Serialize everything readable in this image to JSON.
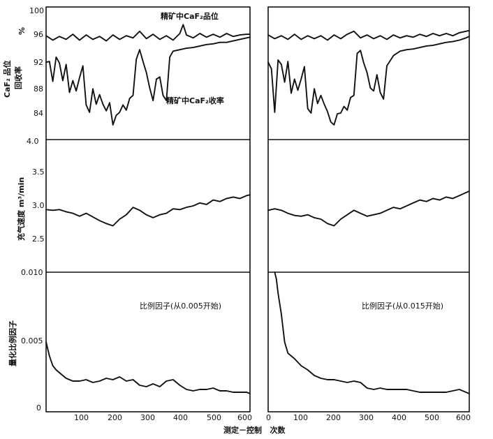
{
  "chart_data": [
    {
      "type": "line",
      "panel": "top-left",
      "ylabel_unit": "%",
      "ylabel_grade": "CaF₂ 品位",
      "ylabel_recovery": "回收率",
      "yticks": [
        "84",
        "88",
        "92",
        "96",
        "100"
      ],
      "ylim": [
        82,
        100
      ],
      "xlim": [
        0,
        610
      ],
      "annotations": [
        "精矿中CaF₂品位",
        "精矿中CaF₂收率"
      ],
      "series": [
        {
          "name": "精矿中CaF₂品位",
          "x": [
            0,
            20,
            40,
            60,
            80,
            100,
            120,
            140,
            160,
            180,
            200,
            220,
            240,
            260,
            280,
            300,
            320,
            340,
            360,
            380,
            400,
            410,
            420,
            440,
            460,
            480,
            500,
            520,
            540,
            560,
            580,
            600,
            610
          ],
          "y": [
            96.1,
            95.5,
            96.0,
            95.6,
            96.3,
            95.5,
            96.2,
            95.6,
            96.0,
            95.4,
            96.2,
            95.6,
            96.1,
            95.8,
            96.7,
            95.7,
            96.3,
            95.6,
            96.1,
            95.5,
            96.4,
            97.6,
            96.2,
            95.8,
            96.4,
            95.9,
            96.3,
            95.9,
            96.4,
            96.0,
            96.2,
            96.3,
            96.3
          ]
        },
        {
          "name": "精矿中CaF₂收率",
          "x": [
            0,
            10,
            20,
            30,
            40,
            50,
            60,
            70,
            80,
            90,
            100,
            110,
            120,
            130,
            140,
            150,
            160,
            170,
            180,
            190,
            200,
            210,
            220,
            230,
            240,
            250,
            260,
            270,
            280,
            290,
            300,
            310,
            320,
            330,
            340,
            350,
            360,
            370,
            380,
            400,
            420,
            440,
            460,
            480,
            500,
            520,
            540,
            560,
            580,
            600,
            610
          ],
          "y": [
            92.5,
            92.6,
            89.9,
            93.2,
            92.4,
            90.0,
            92.2,
            88.4,
            90.0,
            88.6,
            90.4,
            92.0,
            86.7,
            85.7,
            88.9,
            86.8,
            88.1,
            86.8,
            85.9,
            87.0,
            84.0,
            85.3,
            85.7,
            86.7,
            86.0,
            87.6,
            88.0,
            92.9,
            94.2,
            92.6,
            91.1,
            89.0,
            87.3,
            90.2,
            90.5,
            88.0,
            87.3,
            93.2,
            94.0,
            94.2,
            94.4,
            94.5,
            94.7,
            94.9,
            95.0,
            95.2,
            95.2,
            95.4,
            95.6,
            95.8,
            95.9
          ]
        }
      ]
    },
    {
      "type": "line",
      "panel": "top-right",
      "ylim": [
        82,
        100
      ],
      "xlim": [
        0,
        610
      ],
      "series": [
        {
          "name": "精矿中CaF₂品位",
          "x": [
            0,
            20,
            40,
            60,
            80,
            100,
            120,
            140,
            160,
            180,
            200,
            220,
            240,
            260,
            280,
            300,
            320,
            340,
            360,
            380,
            400,
            420,
            440,
            460,
            480,
            500,
            520,
            540,
            560,
            580,
            600,
            610
          ],
          "y": [
            96.2,
            95.7,
            96.1,
            95.6,
            96.3,
            95.6,
            96.1,
            95.7,
            96.1,
            95.5,
            96.2,
            95.7,
            96.3,
            96.7,
            95.8,
            96.2,
            95.7,
            96.1,
            95.6,
            96.2,
            95.8,
            96.1,
            95.9,
            96.3,
            96.0,
            96.4,
            96.1,
            96.4,
            96.1,
            96.5,
            96.7,
            96.8
          ]
        },
        {
          "name": "精矿中CaF₂收率",
          "x": [
            0,
            10,
            20,
            30,
            40,
            50,
            60,
            70,
            80,
            90,
            100,
            110,
            120,
            130,
            140,
            150,
            160,
            170,
            180,
            190,
            200,
            210,
            220,
            230,
            240,
            250,
            260,
            270,
            280,
            290,
            300,
            310,
            320,
            330,
            340,
            350,
            360,
            380,
            400,
            420,
            440,
            460,
            480,
            500,
            520,
            540,
            560,
            580,
            600,
            610
          ],
          "y": [
            92.5,
            91.6,
            85.7,
            92.8,
            92.2,
            89.8,
            92.6,
            88.3,
            90.2,
            88.7,
            90.2,
            91.9,
            86.2,
            85.6,
            88.9,
            86.9,
            88.0,
            86.8,
            85.8,
            84.4,
            84.0,
            85.5,
            85.6,
            86.5,
            86.0,
            87.7,
            88.0,
            93.7,
            94.1,
            92.4,
            91.1,
            89.0,
            88.6,
            90.8,
            88.4,
            87.5,
            92.0,
            93.4,
            94.0,
            94.2,
            94.3,
            94.5,
            94.7,
            94.8,
            95.0,
            95.2,
            95.3,
            95.5,
            95.8,
            96.0
          ]
        }
      ]
    },
    {
      "type": "line",
      "panel": "middle-left",
      "ylabel": "充气速度 m³/min",
      "yticks": [
        "2.5",
        "3.0",
        "3.5",
        "4.0"
      ],
      "ylim": [
        2.2,
        4.0
      ],
      "xlim": [
        0,
        610
      ],
      "series": [
        {
          "x": [
            0,
            20,
            40,
            60,
            80,
            100,
            120,
            140,
            160,
            180,
            200,
            220,
            240,
            260,
            280,
            300,
            320,
            340,
            360,
            380,
            400,
            420,
            440,
            460,
            480,
            500,
            520,
            540,
            560,
            580,
            600,
            610
          ],
          "y": [
            3.05,
            3.04,
            3.05,
            3.02,
            3.0,
            2.96,
            3.0,
            2.95,
            2.9,
            2.86,
            2.83,
            2.92,
            2.98,
            3.08,
            3.04,
            2.98,
            2.94,
            2.98,
            3.0,
            3.06,
            3.05,
            3.08,
            3.1,
            3.14,
            3.12,
            3.18,
            3.16,
            3.2,
            3.22,
            3.2,
            3.24,
            3.25
          ]
        }
      ]
    },
    {
      "type": "line",
      "panel": "middle-right",
      "ylim": [
        2.2,
        4.0
      ],
      "xlim": [
        0,
        610
      ],
      "series": [
        {
          "x": [
            0,
            20,
            40,
            60,
            80,
            100,
            120,
            140,
            160,
            180,
            200,
            220,
            240,
            260,
            280,
            300,
            320,
            340,
            360,
            380,
            400,
            420,
            440,
            460,
            480,
            500,
            520,
            540,
            560,
            580,
            600,
            610
          ],
          "y": [
            3.04,
            3.06,
            3.04,
            3.0,
            2.97,
            2.96,
            2.98,
            2.94,
            2.92,
            2.86,
            2.83,
            2.92,
            2.98,
            3.04,
            3.0,
            2.96,
            2.98,
            3.0,
            3.04,
            3.08,
            3.06,
            3.1,
            3.14,
            3.18,
            3.16,
            3.2,
            3.18,
            3.22,
            3.2,
            3.24,
            3.28,
            3.3
          ]
        }
      ]
    },
    {
      "type": "line",
      "panel": "bottom-left",
      "ylabel": "量化比例因子",
      "annotation": "比例因子(从0.005开始)",
      "yticks": [
        "0",
        "0.005",
        "0.010"
      ],
      "ylim": [
        0,
        0.01
      ],
      "xlim": [
        0,
        610
      ],
      "xticks": [
        "100",
        "200",
        "300",
        "400",
        "500",
        "600"
      ],
      "series": [
        {
          "x": [
            0,
            10,
            20,
            30,
            40,
            60,
            80,
            100,
            120,
            140,
            160,
            180,
            200,
            220,
            240,
            260,
            280,
            300,
            320,
            340,
            360,
            380,
            400,
            420,
            440,
            460,
            480,
            500,
            520,
            540,
            560,
            580,
            600,
            610
          ],
          "y": [
            0.005,
            0.004,
            0.0033,
            0.003,
            0.0028,
            0.0024,
            0.0022,
            0.0022,
            0.0023,
            0.0021,
            0.0022,
            0.0024,
            0.0023,
            0.0025,
            0.0022,
            0.0023,
            0.0019,
            0.0018,
            0.002,
            0.0018,
            0.0022,
            0.0023,
            0.0019,
            0.0016,
            0.0015,
            0.0016,
            0.0016,
            0.0017,
            0.0015,
            0.0015,
            0.0014,
            0.0014,
            0.0014,
            0.0013
          ]
        }
      ]
    },
    {
      "type": "line",
      "panel": "bottom-right",
      "annotation": "比例因子(从0.015开始)",
      "ylim": [
        0,
        0.01
      ],
      "xlim": [
        0,
        610
      ],
      "xticks": [
        "0",
        "100",
        "200",
        "300",
        "400",
        "500",
        "600"
      ],
      "series": [
        {
          "x": [
            20,
            25,
            30,
            40,
            50,
            60,
            80,
            100,
            120,
            140,
            160,
            180,
            200,
            220,
            240,
            260,
            280,
            300,
            320,
            340,
            360,
            380,
            400,
            420,
            440,
            460,
            480,
            500,
            520,
            540,
            560,
            580,
            600,
            610
          ],
          "y": [
            0.01,
            0.0095,
            0.0085,
            0.007,
            0.005,
            0.0042,
            0.0038,
            0.0033,
            0.003,
            0.0026,
            0.0024,
            0.0023,
            0.0023,
            0.0022,
            0.0021,
            0.0022,
            0.0021,
            0.0017,
            0.0016,
            0.0017,
            0.0016,
            0.0016,
            0.0016,
            0.0016,
            0.0015,
            0.0014,
            0.0014,
            0.0014,
            0.0014,
            0.0014,
            0.0015,
            0.0016,
            0.0014,
            0.0013
          ]
        }
      ]
    }
  ],
  "x_axis_caption": "测定－控制   次数"
}
